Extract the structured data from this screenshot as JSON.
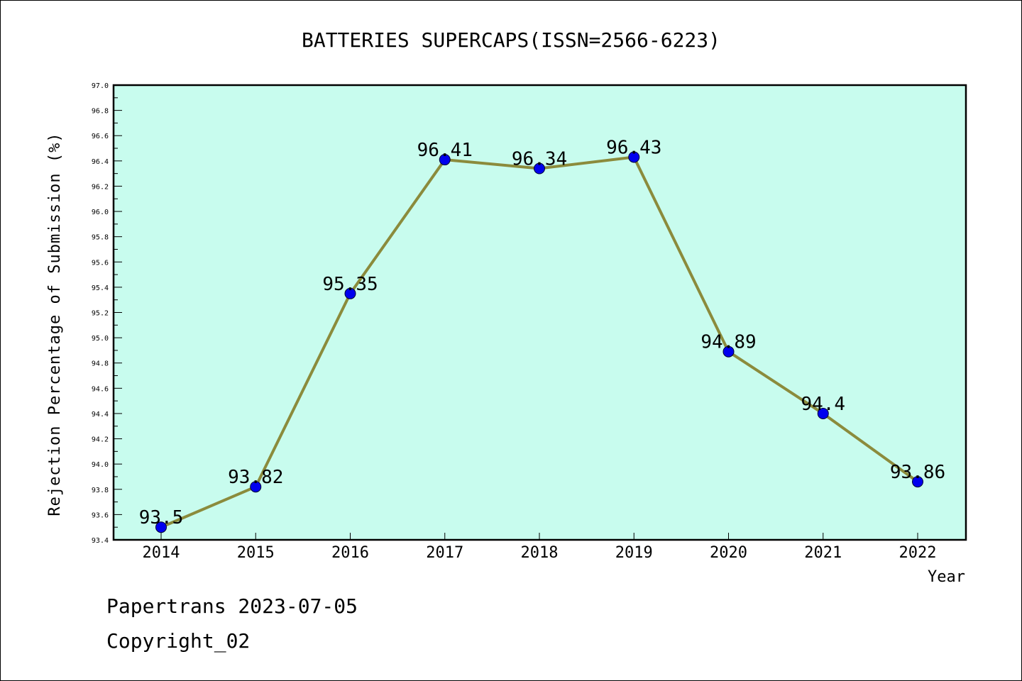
{
  "chart_data": {
    "type": "line",
    "title": "BATTERIES SUPERCAPS(ISSN=2566-6223)",
    "xlabel": "Year",
    "ylabel": "Rejection Percentage of Submission (%)",
    "x": [
      "2014",
      "2015",
      "2016",
      "2017",
      "2018",
      "2019",
      "2020",
      "2021",
      "2022"
    ],
    "values": [
      93.5,
      93.82,
      95.35,
      96.41,
      96.34,
      96.43,
      94.89,
      94.4,
      93.86
    ],
    "data_labels": [
      "93.5",
      "93.82",
      "95.35",
      "96.41",
      "96.34",
      "96.43",
      "94.89",
      "94.4",
      "93.86"
    ],
    "ylim": [
      93.4,
      97.0
    ],
    "yticks": [
      "93.4",
      "93.6",
      "93.8",
      "94.0",
      "94.2",
      "94.4",
      "94.6",
      "94.8",
      "95.0",
      "95.2",
      "95.4",
      "95.6",
      "95.8",
      "96.0",
      "96.2",
      "96.4",
      "96.6",
      "96.8",
      "97.0"
    ],
    "grid": false,
    "colors": {
      "plot_background": "#c8fcee",
      "line": "#8b8b3c",
      "marker": "#0000ee"
    }
  },
  "footer": {
    "line1": "Papertrans 2023-07-05",
    "line2": "Copyright_02"
  }
}
